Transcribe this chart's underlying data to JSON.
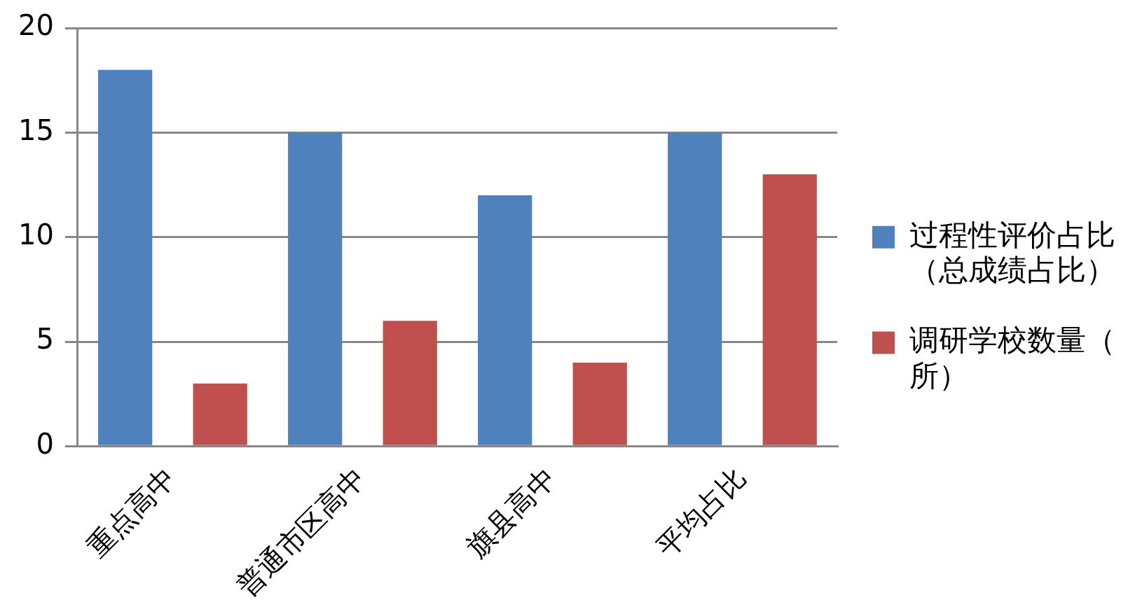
{
  "chart_data": {
    "type": "bar",
    "categories": [
      "重点高中",
      "普通市区高中",
      "旗县高中",
      "平均占比"
    ],
    "series": [
      {
        "name": "过程性评价占比（总成绩占比）",
        "color": "#4f81bd",
        "values": [
          18,
          15,
          12,
          15
        ]
      },
      {
        "name": "调研学校数量（所）",
        "color": "#c0504d",
        "values": [
          3,
          6,
          4,
          13
        ]
      }
    ],
    "ylim": [
      0,
      20
    ],
    "yticks": [
      0,
      5,
      10,
      15,
      20
    ],
    "grid": "y",
    "legend": "right"
  }
}
